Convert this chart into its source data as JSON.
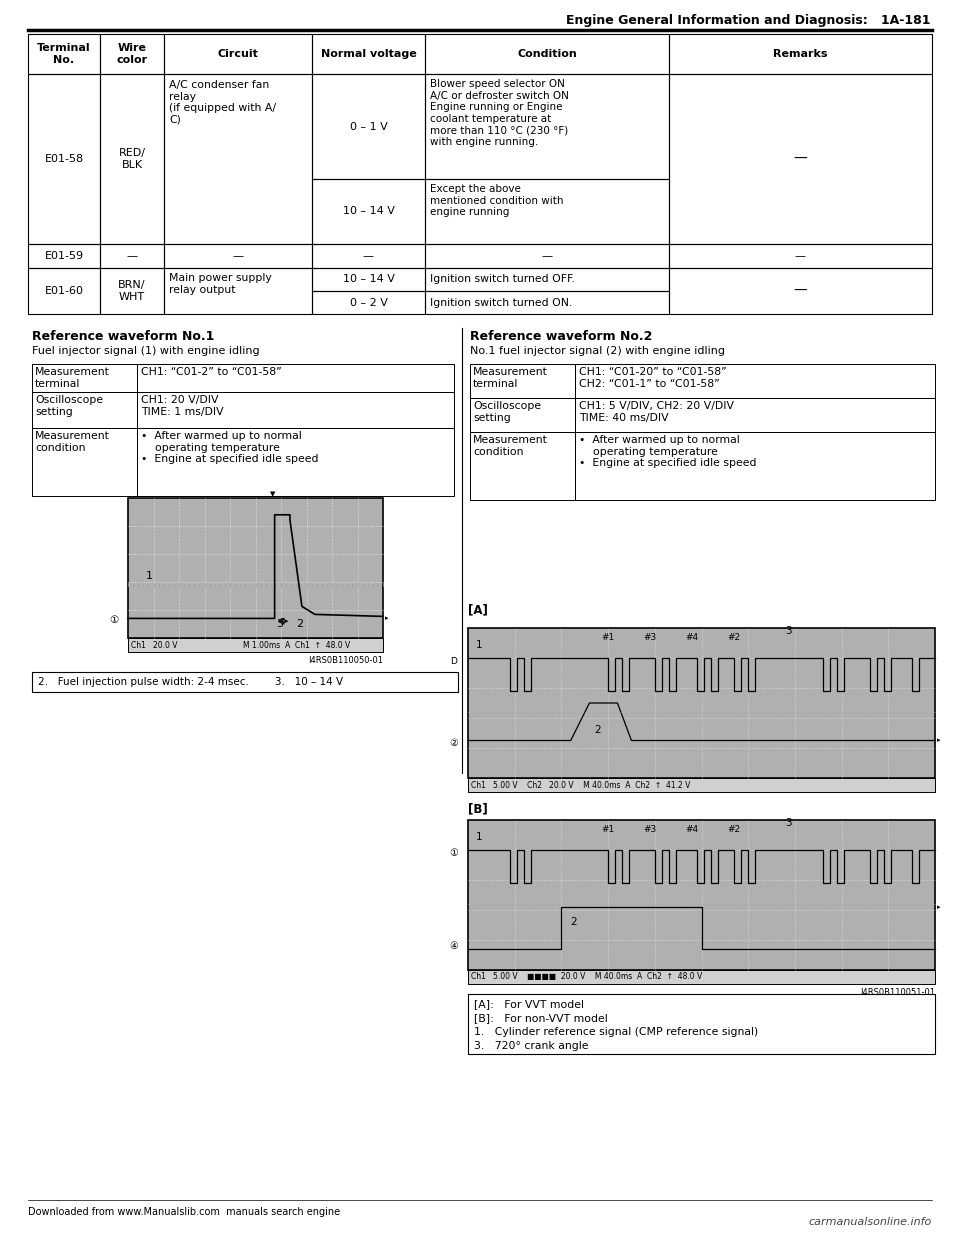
{
  "page_title": "Engine General Information and Diagnosis:   1A-181",
  "table": {
    "headers": [
      "Terminal\nNo.",
      "Wire\ncolor",
      "Circuit",
      "Normal voltage",
      "Condition",
      "Remarks"
    ]
  },
  "ref1": {
    "title": "Reference waveform No.1",
    "subtitle": "Fuel injector signal (1) with engine idling",
    "rows": [
      [
        "Measurement\nterminal",
        "CH1: “C01-2” to “C01-58”"
      ],
      [
        "Oscilloscope\nsetting",
        "CH1: 20 V/DIV\nTIME: 1 ms/DIV"
      ],
      [
        "Measurement\ncondition",
        "•  After warmed up to normal\n    operating temperature\n•  Engine at specified idle speed"
      ]
    ],
    "footnote": "2.   Fuel injection pulse width: 2-4 msec.        3.   10 – 14 V"
  },
  "ref2": {
    "title": "Reference waveform No.2",
    "subtitle": "No.1 fuel injector signal (2) with engine idling",
    "rows": [
      [
        "Measurement\nterminal",
        "CH1: “C01-20” to “C01-58”\nCH2: “C01-1” to “C01-58”"
      ],
      [
        "Oscilloscope\nsetting",
        "CH1: 5 V/DIV, CH2: 20 V/DIV\nTIME: 40 ms/DIV"
      ],
      [
        "Measurement\ncondition",
        "•  After warmed up to normal\n    operating temperature\n•  Engine at specified idle speed"
      ]
    ],
    "legend": [
      "[A]:   For VVT model",
      "[B]:   For non-VVT model",
      "1.   Cylinder reference signal (CMP reference signal)",
      "3.   720° crank angle"
    ]
  },
  "footer_left": "Downloaded from www.Manualslib.com  manuals search engine",
  "footer_right": "carmanualsonline.info",
  "osc1_bar": "Ch1   20.0 V                              M 1.00ms  A  Ch1  ↑  48.0 V",
  "osc2_bar": "Ch1   5.00 V    Ch2   20.0 V    M 40.0ms  A  Ch2  ↑  41.2 V",
  "osc3_bar": "Ch1   5.00 V    ■■■■  20.0 V    M 40.0ms  A  Ch2  ↑  48.0 V",
  "osc1_id": "I4RS0B110050-01",
  "osc2_id": "I4RS0B110051-01"
}
